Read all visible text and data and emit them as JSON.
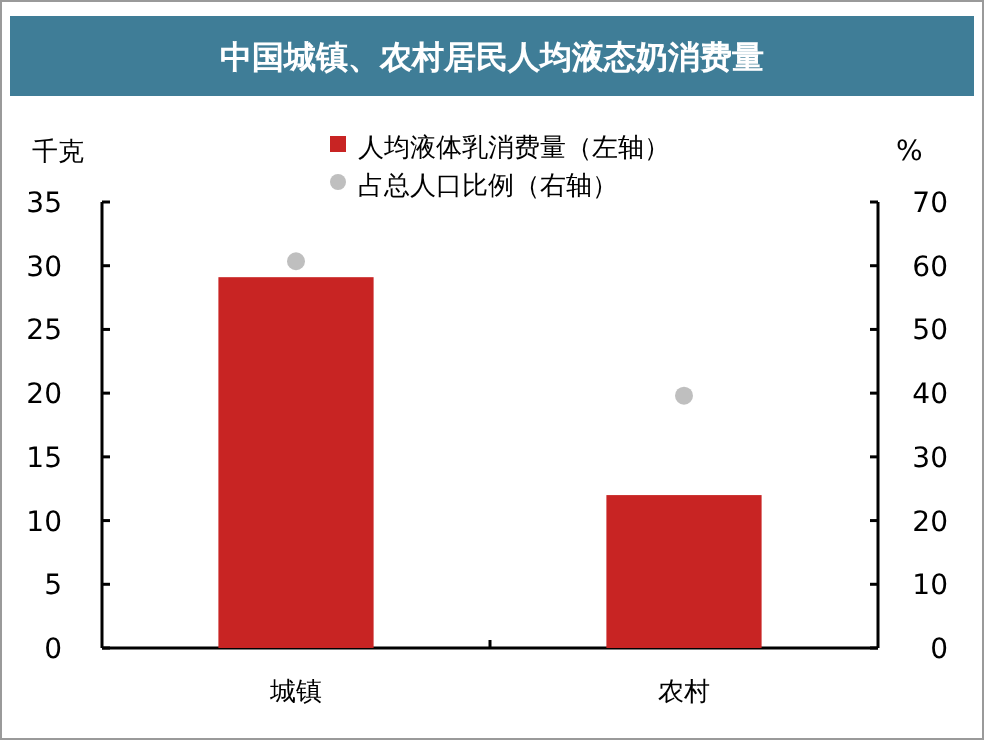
{
  "chart_data": {
    "type": "bar",
    "title": "中国城镇、农村居民人均液态奶消费量",
    "categories": [
      "城镇",
      "农村"
    ],
    "series": [
      {
        "name": "人均液体乳消费量（左轴）",
        "color": "#c82423",
        "values": [
          29.1,
          12.0
        ]
      },
      {
        "name": "占总人口比例（右轴）",
        "type": "scatter",
        "axis": "y2",
        "color": "#bfbfbf",
        "values": [
          60.7,
          39.6
        ]
      }
    ],
    "ylabel": "千克",
    "y2label": "%",
    "ylim": [
      0,
      35
    ],
    "yticks": [
      0,
      5,
      10,
      15,
      20,
      25,
      30,
      35
    ],
    "y2lim": [
      0,
      70
    ],
    "y2ticks": [
      0,
      10,
      20,
      30,
      40,
      50,
      60,
      70
    ],
    "legend": "top",
    "grid": false,
    "marker": "circle"
  }
}
